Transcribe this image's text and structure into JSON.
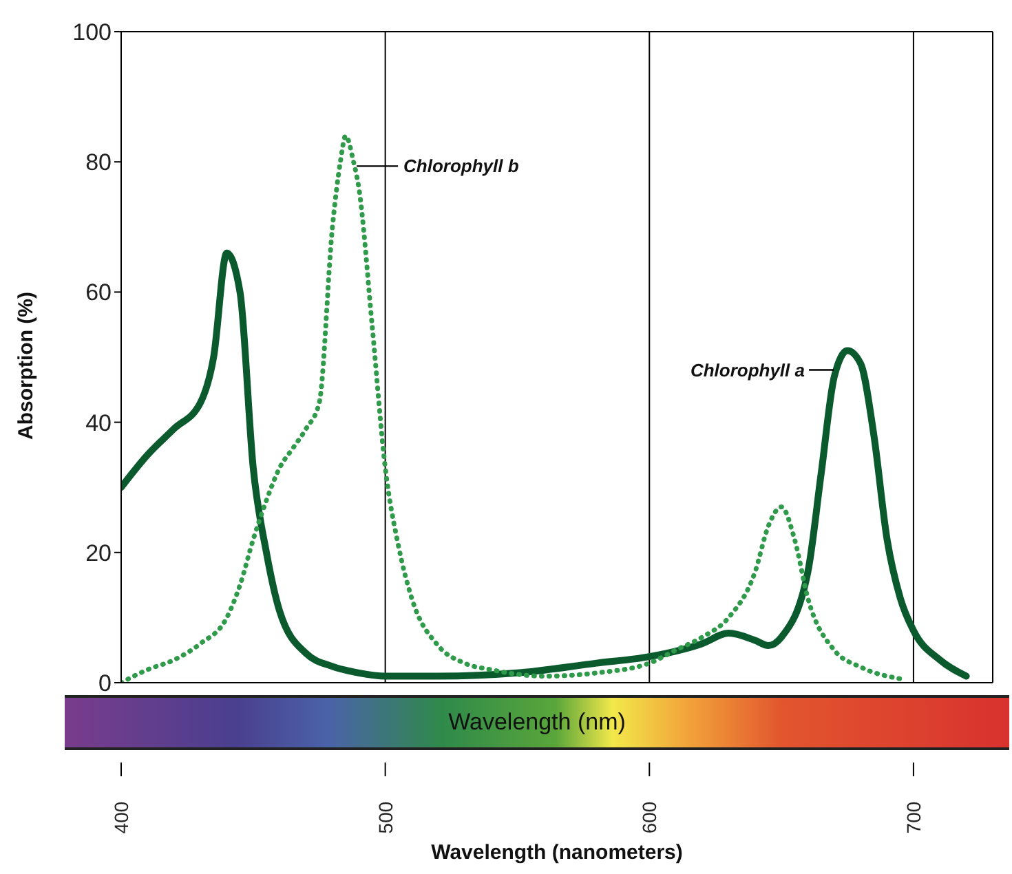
{
  "chart_data": {
    "type": "line",
    "xlabel": "Wavelength (nanometers)",
    "ylabel": "Absorption (%)",
    "annotations": [
      "Wavelength (nm)"
    ],
    "xlim": [
      400,
      730
    ],
    "xticks": [
      400,
      500,
      600,
      700
    ],
    "ylim": [
      0,
      100
    ],
    "yticks": [
      0,
      20,
      40,
      60,
      80,
      100
    ],
    "grid": "x",
    "marker": "none",
    "series": [
      {
        "name": "Chlorophyll a",
        "color": "#0b5a2e",
        "line_style": "solid",
        "x": [
          400,
          410,
          420,
          430,
          435,
          440,
          445,
          450,
          455,
          460,
          470,
          480,
          490,
          500,
          520,
          550,
          580,
          600,
          620,
          630,
          640,
          645,
          650,
          660,
          665,
          670,
          675,
          680,
          685,
          690,
          695,
          700,
          710,
          720
        ],
        "values": [
          30,
          35,
          39,
          43,
          50,
          66,
          60,
          33,
          20,
          11,
          4.5,
          2.5,
          1.5,
          1,
          1,
          1.5,
          3,
          4,
          6,
          7.6,
          6.5,
          5.7,
          7,
          17,
          32,
          47,
          51,
          49,
          38,
          22,
          13,
          8,
          3.5,
          1
        ]
      },
      {
        "name": "Chlorophyll b",
        "color": "#2e9a4a",
        "line_style": "dotted",
        "x": [
          400,
          410,
          420,
          430,
          440,
          445,
          450,
          455,
          460,
          465,
          470,
          475,
          480,
          483,
          485,
          488,
          490,
          495,
          500,
          505,
          510,
          520,
          530,
          540,
          560,
          580,
          600,
          610,
          620,
          630,
          640,
          645,
          650,
          655,
          660,
          670,
          680,
          695
        ],
        "values": [
          0,
          2,
          3.5,
          6,
          10,
          15,
          22,
          28,
          33,
          36,
          39,
          43,
          70,
          80,
          84,
          80,
          76,
          55,
          33,
          21,
          13,
          5.7,
          3,
          2,
          1,
          1.5,
          3,
          5,
          7,
          10,
          17,
          24,
          27,
          22,
          13,
          5,
          2.4,
          0.6
        ]
      }
    ]
  }
}
